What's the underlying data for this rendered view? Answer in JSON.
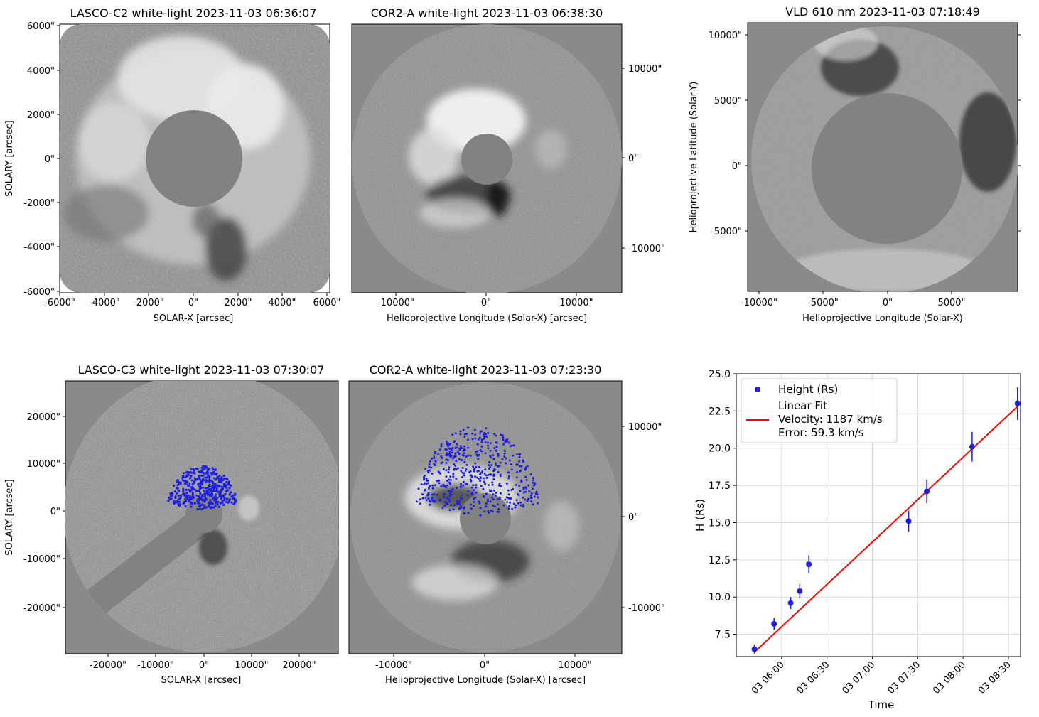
{
  "panels": [
    {
      "id": "lasco-c2",
      "title": "LASCO-C2 white-light 2023-11-03 06:36:07",
      "xlabel": "SOLAR-X [arcsec]",
      "ylabel": "SOLARY [arcsec]",
      "xticks": [
        "-6000\"",
        "-4000\"",
        "-2000\"",
        "0\"",
        "2000\"",
        "4000\"",
        "6000\""
      ],
      "yticks": [
        "6000\"",
        "4000\"",
        "2000\"",
        "0\"",
        "-2000\"",
        "-4000\"",
        "-6000\""
      ],
      "right_ticks": []
    },
    {
      "id": "cor2a-early",
      "title": "COR2-A white-light 2023-11-03 06:38:30",
      "xlabel": "Helioprojective Longitude (Solar-X) [arcsec]",
      "ylabel": "",
      "xticks": [
        "-10000\"",
        "0\"",
        "10000\""
      ],
      "yticks": [],
      "right_ticks": [
        "10000\"",
        "0\"",
        "-10000\""
      ]
    },
    {
      "id": "vld-610",
      "title": "VLD 610 nm 2023-11-03 07:18:49",
      "xlabel": "Helioprojective Longitude (Solar-X)",
      "ylabel": "Helioprojective Latitude (Solar-Y)",
      "xticks": [
        "-10000\"",
        "-5000\"",
        "0\"",
        "5000\""
      ],
      "yticks": [
        "10000\"",
        "5000\"",
        "0\"",
        "-5000\""
      ],
      "right_ticks": []
    },
    {
      "id": "lasco-c3",
      "title": "LASCO-C3 white-light 2023-11-03 07:30:07",
      "xlabel": "SOLAR-X [arcsec]",
      "ylabel": "SOLARY [arcsec]",
      "xticks": [
        "-20000\"",
        "-10000\"",
        "0\"",
        "10000\"",
        "20000\""
      ],
      "yticks": [
        "20000\"",
        "10000\"",
        "0\"",
        "-10000\"",
        "-20000\""
      ],
      "right_ticks": []
    },
    {
      "id": "cor2a-late",
      "title": "COR2-A white-light 2023-11-03 07:23:30",
      "xlabel": "Helioprojective Longitude (Solar-X) [arcsec]",
      "ylabel": "",
      "xticks": [
        "-10000\"",
        "0\"",
        "10000\""
      ],
      "yticks": [],
      "right_ticks": [
        "10000\"",
        "0\"",
        "-10000\""
      ]
    }
  ],
  "colors": {
    "image_gray": "#8a8a8a",
    "occulter": "#828282",
    "points": "#1f1fe0",
    "fit_line": "#ff0000",
    "grid": "#d8d8d8"
  },
  "chart_data": {
    "type": "scatter",
    "title": "",
    "xlabel": "Time",
    "ylabel": "H (Rs)",
    "ylim": [
      6.0,
      25.0
    ],
    "xlim_minutes": [
      330,
      518
    ],
    "yticks": [
      7.5,
      10.0,
      12.5,
      15.0,
      17.5,
      20.0,
      22.5,
      25.0
    ],
    "ytick_labels": [
      "7.5",
      "10.0",
      "12.5",
      "15.0",
      "17.5",
      "20.0",
      "22.5",
      "25.0"
    ],
    "xticks_minutes": [
      360,
      390,
      420,
      450,
      480,
      510
    ],
    "xtick_labels": [
      "03 06:00",
      "03 06:30",
      "03 07:00",
      "03 07:30",
      "03 08:00",
      "03 08:30"
    ],
    "grid": true,
    "legend_position": "top-left",
    "series": [
      {
        "name": "Height (Rs)",
        "kind": "errorbar",
        "x_minutes": [
          342,
          355,
          366,
          372,
          378,
          444,
          456,
          486,
          516
        ],
        "y": [
          6.5,
          8.2,
          9.6,
          10.4,
          12.2,
          15.1,
          17.1,
          20.1,
          23.0
        ],
        "yerr": [
          0.3,
          0.4,
          0.4,
          0.5,
          0.6,
          0.7,
          0.8,
          1.0,
          1.1
        ]
      },
      {
        "name": "Linear Fit",
        "kind": "line",
        "x_minutes": [
          342,
          516
        ],
        "y": [
          6.3,
          22.8
        ]
      }
    ],
    "legend": {
      "points_label": "Height (Rs)",
      "line_label": "Linear Fit",
      "velocity": "Velocity: 1187 km/s",
      "error": "Error: 59.3 km/s"
    }
  }
}
